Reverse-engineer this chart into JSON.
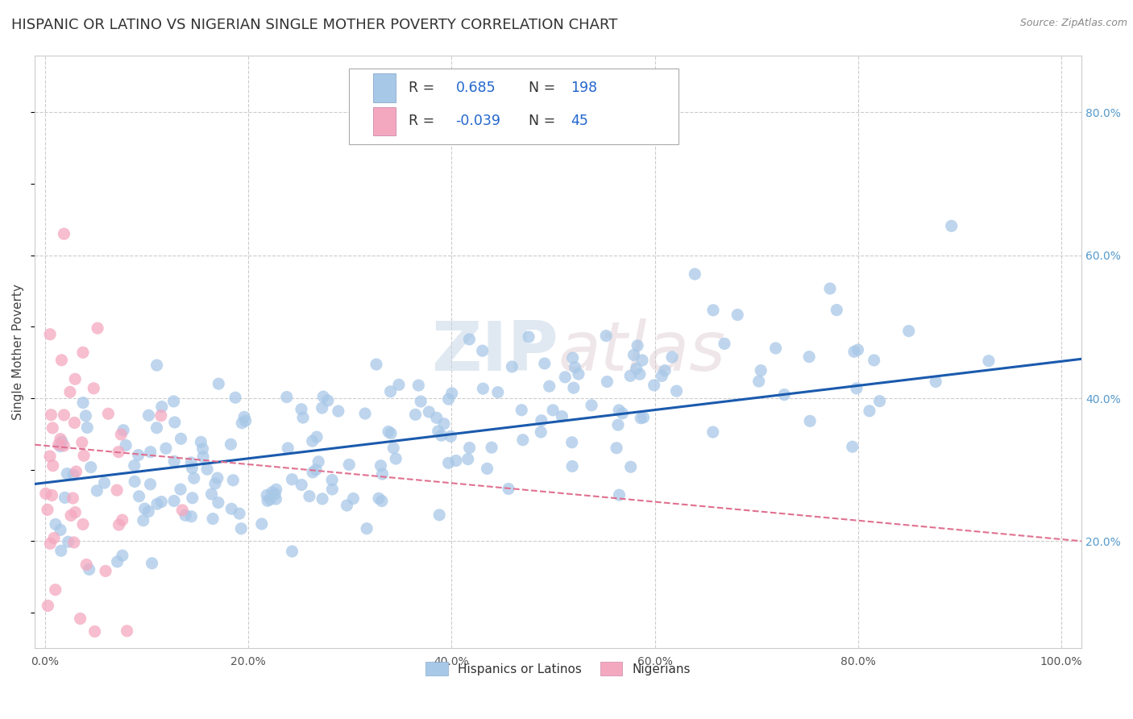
{
  "title": "HISPANIC OR LATINO VS NIGERIAN SINGLE MOTHER POVERTY CORRELATION CHART",
  "source": "Source: ZipAtlas.com",
  "ylabel": "Single Mother Poverty",
  "ytick_labels": [
    "20.0%",
    "40.0%",
    "60.0%",
    "80.0%"
  ],
  "yticks": [
    0.2,
    0.4,
    0.6,
    0.8
  ],
  "ylim": [
    0.05,
    0.88
  ],
  "xlim": [
    -0.01,
    1.02
  ],
  "xticks": [
    0.0,
    0.2,
    0.4,
    0.6,
    0.8,
    1.0
  ],
  "xtick_labels": [
    "0.0%",
    "20.0%",
    "40.0%",
    "60.0%",
    "80.0%",
    "100.0%"
  ],
  "r_hispanic": 0.685,
  "n_hispanic": 198,
  "r_nigerian": -0.039,
  "n_nigerian": 45,
  "legend_labels": [
    "Hispanics or Latinos",
    "Nigerians"
  ],
  "color_hispanic": "#a8c8e8",
  "color_nigerian": "#f4a8c0",
  "line_color_hispanic": "#1a5aad",
  "line_color_nigerian": "#e07090",
  "line_style_nigerian": "--",
  "watermark_text": "ZIPatlas",
  "watermark_zip_color": "#d0dce8",
  "watermark_atlas_color": "#d8c8d0",
  "background_color": "#ffffff",
  "grid_color": "#cccccc",
  "title_fontsize": 13,
  "axis_label_fontsize": 11,
  "tick_fontsize": 10,
  "legend_fontsize": 11,
  "scatter_size": 120,
  "scatter_alpha": 0.75,
  "hispanic_line_start_y": 0.28,
  "hispanic_line_end_y": 0.455,
  "nigerian_line_start_y": 0.335,
  "nigerian_line_end_y": 0.2
}
